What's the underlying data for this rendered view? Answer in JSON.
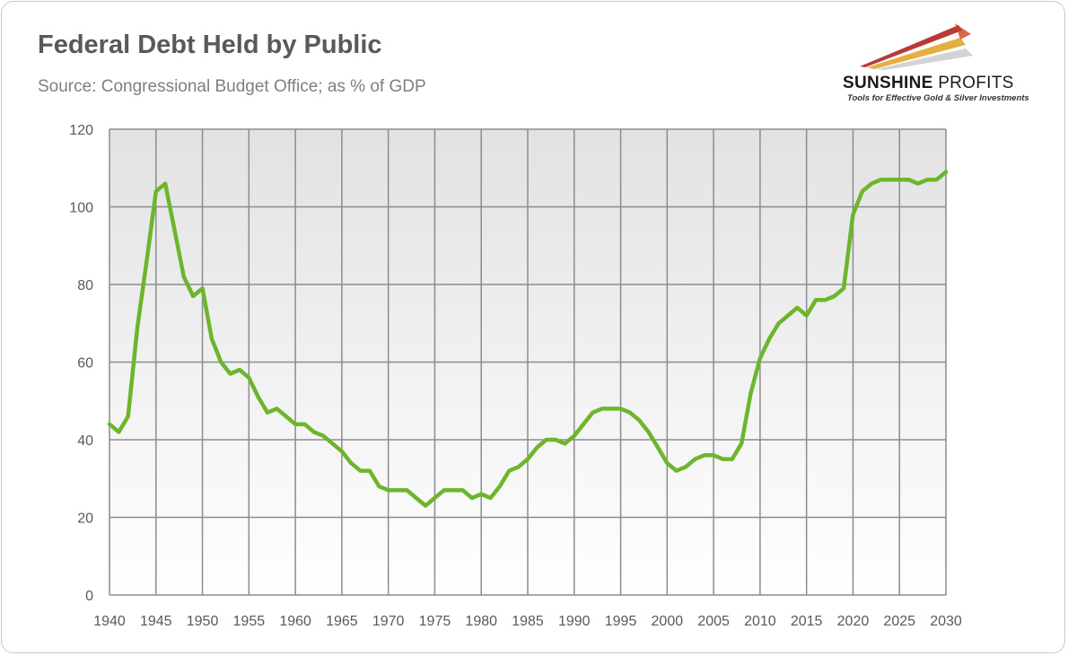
{
  "title": "Federal Debt Held by Public",
  "subtitle": "Source: Congressional Budget Office; as % of GDP",
  "logo": {
    "name_bold": "SUNSHINE",
    "name_light": "PROFITS",
    "tagline": "Tools for Effective Gold & Silver Investments"
  },
  "colors": {
    "line": "#6cb52d",
    "grid": "#8c8c8c",
    "text": "#595959"
  },
  "chart_data": {
    "type": "line",
    "title": "Federal Debt Held by Public",
    "subtitle": "Source: Congressional Budget Office; as % of GDP",
    "xlabel": "",
    "ylabel": "",
    "xlim": [
      1940,
      2030
    ],
    "ylim": [
      0,
      120
    ],
    "x_ticks": [
      1940,
      1945,
      1950,
      1955,
      1960,
      1965,
      1970,
      1975,
      1980,
      1985,
      1990,
      1995,
      2000,
      2005,
      2010,
      2015,
      2020,
      2025,
      2030
    ],
    "y_ticks": [
      0,
      20,
      40,
      60,
      80,
      100,
      120
    ],
    "grid": true,
    "legend": "none",
    "series": [
      {
        "name": "Federal Debt Held by Public (% of GDP)",
        "x": [
          1940,
          1941,
          1942,
          1943,
          1944,
          1945,
          1946,
          1947,
          1948,
          1949,
          1950,
          1951,
          1952,
          1953,
          1954,
          1955,
          1956,
          1957,
          1958,
          1959,
          1960,
          1961,
          1962,
          1963,
          1964,
          1965,
          1966,
          1967,
          1968,
          1969,
          1970,
          1971,
          1972,
          1973,
          1974,
          1975,
          1976,
          1977,
          1978,
          1979,
          1980,
          1981,
          1982,
          1983,
          1984,
          1985,
          1986,
          1987,
          1988,
          1989,
          1990,
          1991,
          1992,
          1993,
          1994,
          1995,
          1996,
          1997,
          1998,
          1999,
          2000,
          2001,
          2002,
          2003,
          2004,
          2005,
          2006,
          2007,
          2008,
          2009,
          2010,
          2011,
          2012,
          2013,
          2014,
          2015,
          2016,
          2017,
          2018,
          2019,
          2020,
          2021,
          2022,
          2023,
          2024,
          2025,
          2026,
          2027,
          2028,
          2029,
          2030
        ],
        "values": [
          44,
          42,
          46,
          69,
          86,
          104,
          106,
          94,
          82,
          77,
          79,
          66,
          60,
          57,
          58,
          56,
          51,
          47,
          48,
          46,
          44,
          44,
          42,
          41,
          39,
          37,
          34,
          32,
          32,
          28,
          27,
          27,
          27,
          25,
          23,
          25,
          27,
          27,
          27,
          25,
          26,
          25,
          28,
          32,
          33,
          35,
          38,
          40,
          40,
          39,
          41,
          44,
          47,
          48,
          48,
          48,
          47,
          45,
          42,
          38,
          34,
          32,
          33,
          35,
          36,
          36,
          35,
          35,
          39,
          52,
          61,
          66,
          70,
          72,
          74,
          72,
          76,
          76,
          77,
          79,
          98,
          104,
          106,
          107,
          107,
          107,
          107,
          106,
          107,
          107,
          109
        ]
      }
    ]
  }
}
